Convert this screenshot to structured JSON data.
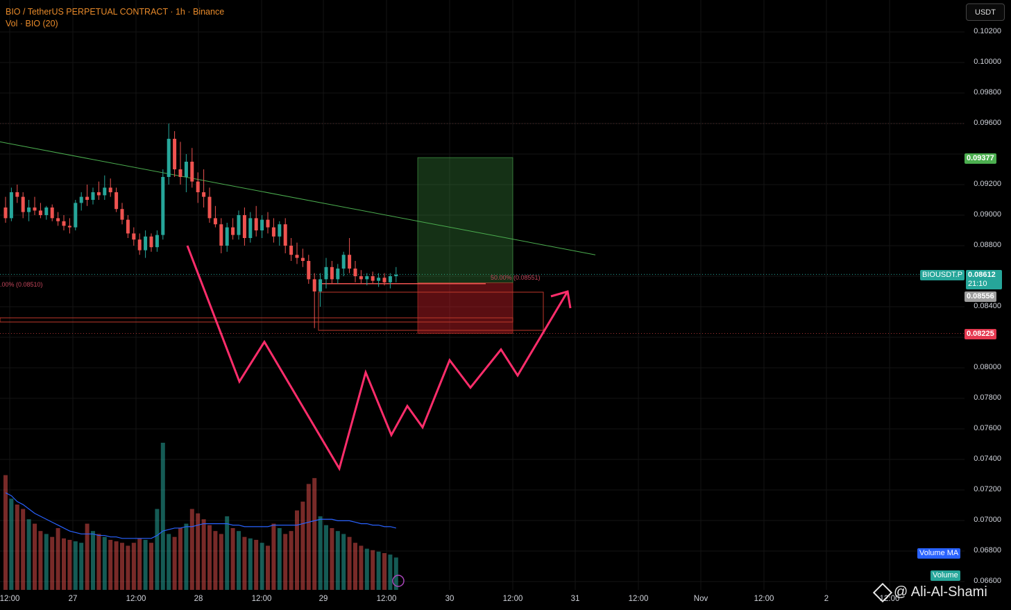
{
  "header": {
    "title": "BIO / TetherUS PERPETUAL CONTRACT · 1h · Binance",
    "subtitle": "Vol · BIO (20)"
  },
  "currency_button": "USDT",
  "price_axis": {
    "min": 0.0656,
    "max": 0.1032,
    "ticks": [
      "0.10200",
      "0.10000",
      "0.09800",
      "0.09600",
      "0.09200",
      "0.09000",
      "0.08800",
      "0.08400",
      "0.08000",
      "0.07800",
      "0.07600",
      "0.07400",
      "0.07200",
      "0.07000",
      "0.06800",
      "0.06600"
    ]
  },
  "time_axis": [
    "12:00",
    "27",
    "12:00",
    "28",
    "12:00",
    "29",
    "12:00",
    "30",
    "12:00",
    "31",
    "12:00",
    "Nov",
    "12:00",
    "2",
    "12:00"
  ],
  "badges": {
    "target": "0.09377",
    "symbol": "BIOUSDT.P",
    "last_price": "0.08612",
    "countdown": "21:10",
    "entry": "0.08556",
    "stop": "0.08225",
    "volume_ma": "Volume MA",
    "volume": "Volume"
  },
  "annotations": {
    "fib_left": ".00% (0.08510)",
    "fib_right": "50.00% (0.08551)"
  },
  "watermark": "@ Ali-Al-Shami",
  "colors": {
    "up": "#26a69a",
    "down": "#ef5350",
    "target": "#4caf50",
    "stop": "#e53950",
    "path": "#ff2d6b",
    "trend": "#4caf50",
    "ma": "#2962ff"
  },
  "chart_data": {
    "type": "candlestick",
    "candles": [
      [
        0.0905,
        0.0912,
        0.0895,
        0.0898
      ],
      [
        0.0898,
        0.0918,
        0.0896,
        0.0915
      ],
      [
        0.0915,
        0.092,
        0.0908,
        0.0912
      ],
      [
        0.0912,
        0.0915,
        0.0898,
        0.0902
      ],
      [
        0.0902,
        0.091,
        0.0896,
        0.0905
      ],
      [
        0.0905,
        0.0912,
        0.09,
        0.0903
      ],
      [
        0.0903,
        0.0908,
        0.0898,
        0.09
      ],
      [
        0.09,
        0.0906,
        0.0897,
        0.0905
      ],
      [
        0.0905,
        0.0907,
        0.0896,
        0.0898
      ],
      [
        0.0898,
        0.0902,
        0.0893,
        0.0896
      ],
      [
        0.0896,
        0.09,
        0.089,
        0.0893
      ],
      [
        0.0893,
        0.0898,
        0.0888,
        0.0892
      ],
      [
        0.0892,
        0.091,
        0.089,
        0.0908
      ],
      [
        0.0908,
        0.0915,
        0.0903,
        0.0912
      ],
      [
        0.0912,
        0.092,
        0.0906,
        0.091
      ],
      [
        0.091,
        0.0918,
        0.0907,
        0.0915
      ],
      [
        0.0915,
        0.0922,
        0.091,
        0.0913
      ],
      [
        0.0913,
        0.0926,
        0.091,
        0.0918
      ],
      [
        0.0918,
        0.0924,
        0.0912,
        0.0915
      ],
      [
        0.0915,
        0.0918,
        0.0902,
        0.0904
      ],
      [
        0.0904,
        0.0908,
        0.0894,
        0.0897
      ],
      [
        0.0897,
        0.09,
        0.0885,
        0.0888
      ],
      [
        0.0888,
        0.0892,
        0.088,
        0.0884
      ],
      [
        0.0884,
        0.0888,
        0.0874,
        0.0877
      ],
      [
        0.0877,
        0.089,
        0.0872,
        0.0886
      ],
      [
        0.0886,
        0.0888,
        0.0876,
        0.0879
      ],
      [
        0.0879,
        0.089,
        0.0876,
        0.0887
      ],
      [
        0.0887,
        0.093,
        0.0884,
        0.0925
      ],
      [
        0.0925,
        0.096,
        0.092,
        0.095
      ],
      [
        0.095,
        0.0955,
        0.0925,
        0.093
      ],
      [
        0.093,
        0.0948,
        0.092,
        0.0925
      ],
      [
        0.0925,
        0.094,
        0.0915,
        0.0935
      ],
      [
        0.0935,
        0.0944,
        0.0918,
        0.0922
      ],
      [
        0.0922,
        0.0928,
        0.0908,
        0.0915
      ],
      [
        0.0915,
        0.093,
        0.0905,
        0.0912
      ],
      [
        0.0912,
        0.0918,
        0.0895,
        0.0898
      ],
      [
        0.0898,
        0.0906,
        0.0892,
        0.0894
      ],
      [
        0.0894,
        0.0898,
        0.0875,
        0.088
      ],
      [
        0.088,
        0.0895,
        0.0876,
        0.0892
      ],
      [
        0.0892,
        0.0898,
        0.0884,
        0.0887
      ],
      [
        0.0887,
        0.0903,
        0.0884,
        0.09
      ],
      [
        0.09,
        0.0905,
        0.088,
        0.0885
      ],
      [
        0.0885,
        0.0902,
        0.0882,
        0.0898
      ],
      [
        0.0898,
        0.0906,
        0.0886,
        0.089
      ],
      [
        0.089,
        0.09,
        0.0885,
        0.0897
      ],
      [
        0.0897,
        0.0902,
        0.0888,
        0.0892
      ],
      [
        0.0892,
        0.0898,
        0.0882,
        0.0886
      ],
      [
        0.0886,
        0.0896,
        0.088,
        0.0894
      ],
      [
        0.0894,
        0.0898,
        0.0875,
        0.088
      ],
      [
        0.088,
        0.0885,
        0.087,
        0.0874
      ],
      [
        0.0874,
        0.0882,
        0.0868,
        0.0872
      ],
      [
        0.0872,
        0.0878,
        0.0866,
        0.087
      ],
      [
        0.087,
        0.0874,
        0.0855,
        0.0858
      ],
      [
        0.0858,
        0.0862,
        0.0826,
        0.085
      ],
      [
        0.085,
        0.0862,
        0.084,
        0.0858
      ],
      [
        0.0858,
        0.0872,
        0.0852,
        0.0866
      ],
      [
        0.0866,
        0.087,
        0.0855,
        0.0858
      ],
      [
        0.0858,
        0.0868,
        0.0855,
        0.0865
      ],
      [
        0.0865,
        0.0876,
        0.086,
        0.0874
      ],
      [
        0.0874,
        0.0885,
        0.0862,
        0.0865
      ],
      [
        0.0865,
        0.087,
        0.0856,
        0.086
      ],
      [
        0.086,
        0.0864,
        0.0855,
        0.0858
      ],
      [
        0.0858,
        0.0862,
        0.0854,
        0.086
      ],
      [
        0.086,
        0.0863,
        0.0855,
        0.0857
      ],
      [
        0.0857,
        0.0862,
        0.0853,
        0.0859
      ],
      [
        0.0859,
        0.0862,
        0.0854,
        0.0856
      ],
      [
        0.0856,
        0.0862,
        0.0852,
        0.086
      ],
      [
        0.086,
        0.0866,
        0.0856,
        0.0861
      ]
    ],
    "volume": [
      78,
      62,
      58,
      55,
      48,
      45,
      40,
      38,
      36,
      42,
      35,
      34,
      33,
      32,
      45,
      40,
      38,
      36,
      34,
      33,
      32,
      30,
      32,
      35,
      34,
      32,
      55,
      100,
      38,
      36,
      42,
      45,
      55,
      52,
      48,
      44,
      40,
      38,
      50,
      42,
      40,
      36,
      35,
      34,
      32,
      30,
      45,
      42,
      38,
      40,
      54,
      60,
      72,
      76,
      50,
      44,
      42,
      40,
      38,
      36,
      32,
      30,
      28,
      27,
      26,
      25,
      24,
      22
    ],
    "volume_ma": [
      66,
      64,
      60,
      58,
      55,
      52,
      50,
      48,
      46,
      44,
      42,
      40,
      39,
      38,
      38,
      38,
      37,
      37,
      36,
      36,
      35,
      35,
      35,
      35,
      35,
      35,
      37,
      40,
      41,
      42,
      42,
      43,
      43,
      44,
      45,
      45,
      45,
      45,
      45,
      44,
      44,
      43,
      43,
      43,
      43,
      43,
      44,
      44,
      44,
      44,
      44,
      45,
      46,
      47,
      48,
      48,
      48,
      47,
      47,
      47,
      46,
      45,
      45,
      44,
      44,
      43,
      43,
      42
    ],
    "trendline": {
      "from": [
        0.0948,
        "start"
      ],
      "to": [
        0.0874,
        "end"
      ]
    },
    "position": {
      "entry": 0.08556,
      "target": 0.09377,
      "stop": 0.08225
    },
    "projection_path": [
      0.088,
      0.0791,
      0.0817,
      0.0734,
      0.0797,
      0.0756,
      0.0775,
      0.0761,
      0.0805,
      0.0787,
      0.0812,
      0.0795,
      0.085
    ]
  }
}
